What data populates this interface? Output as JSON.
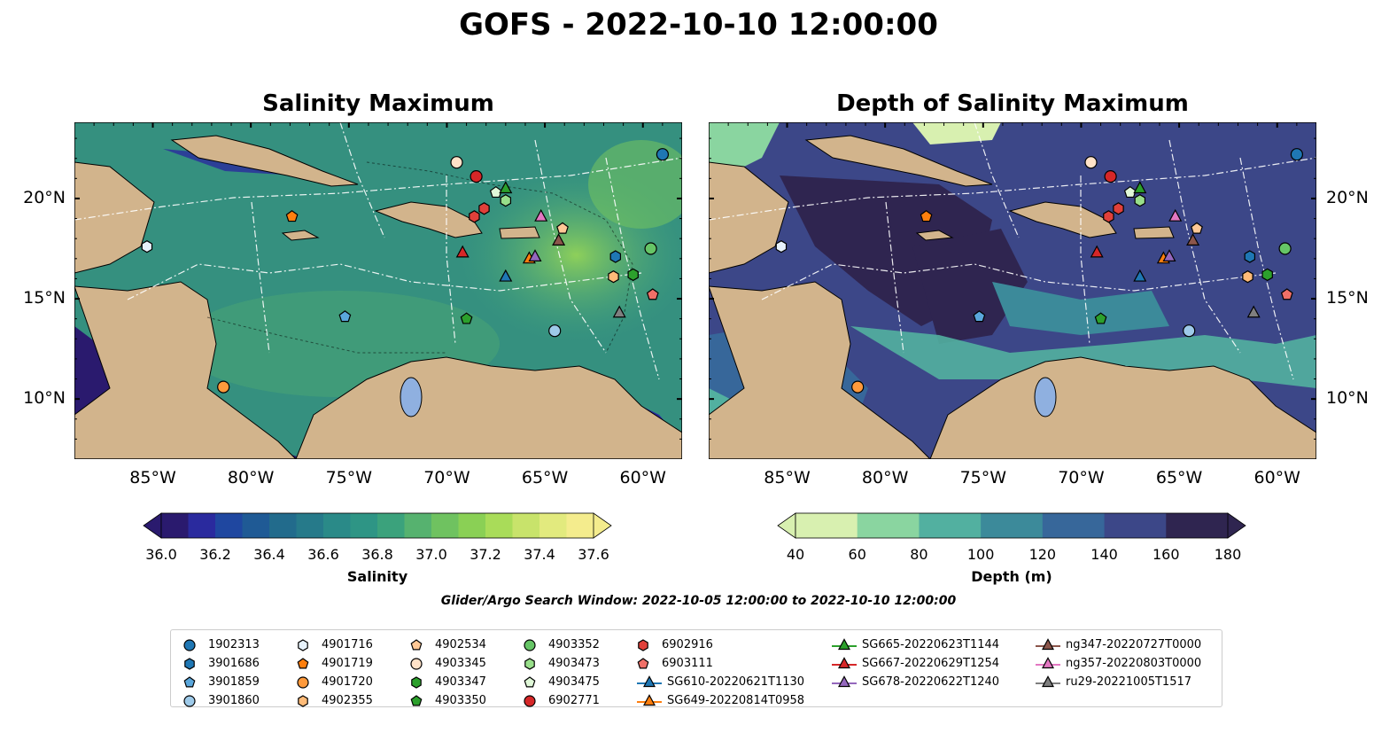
{
  "suptitle": "GOFS - 2022-10-10 12:00:00",
  "panels": [
    {
      "title": "Salinity Maximum"
    },
    {
      "title": "Depth of Salinity Maximum"
    }
  ],
  "axis": {
    "lon_labels": [
      "85°W",
      "80°W",
      "75°W",
      "70°W",
      "65°W",
      "60°W"
    ],
    "lat_labels": [
      "20°N",
      "15°N",
      "10°N"
    ]
  },
  "colorbars": [
    {
      "label": "Salinity",
      "ticks": [
        "36.0",
        "36.2",
        "36.4",
        "36.6",
        "36.8",
        "37.0",
        "37.2",
        "37.4",
        "37.6"
      ],
      "colors": [
        "#2a1a6e",
        "#2a2a9e",
        "#1f47a0",
        "#1f5a95",
        "#226b8c",
        "#267a8a",
        "#2a8a88",
        "#2e9585",
        "#3ba27c",
        "#56b26f",
        "#6fc260",
        "#8ad055",
        "#a9dc59",
        "#c8e36b",
        "#e2ea7e",
        "#f4ec8d"
      ]
    },
    {
      "label": "Depth (m)",
      "ticks": [
        "40",
        "60",
        "80",
        "100",
        "120",
        "140",
        "160",
        "180"
      ],
      "colors": [
        "#d8f0b0",
        "#8ad5a0",
        "#52b0a0",
        "#3c8a9a",
        "#37679a",
        "#3c4788",
        "#2f2550"
      ]
    }
  ],
  "search_window": "Glider/Argo Search Window: 2022-10-05 12:00:00 to 2022-10-10 12:00:00",
  "legend": [
    {
      "label": "1902313",
      "marker": "circle",
      "color": "#1f77b4"
    },
    {
      "label": "3901686",
      "marker": "hexagon",
      "color": "#1f77b4"
    },
    {
      "label": "3901859",
      "marker": "pentagon",
      "color": "#5aa7dc"
    },
    {
      "label": "3901860",
      "marker": "circle",
      "color": "#9ecae9"
    },
    {
      "label": "4901716",
      "marker": "hexagon",
      "color": "#e7f2fb"
    },
    {
      "label": "4901719",
      "marker": "pentagon",
      "color": "#ff7f0e"
    },
    {
      "label": "4901720",
      "marker": "circle",
      "color": "#ff9a3c"
    },
    {
      "label": "4902355",
      "marker": "hexagon",
      "color": "#ffbb78"
    },
    {
      "label": "4902534",
      "marker": "pentagon",
      "color": "#ffc896"
    },
    {
      "label": "4903345",
      "marker": "circle",
      "color": "#ffe2c8"
    },
    {
      "label": "4903347",
      "marker": "hexagon",
      "color": "#2ca02c"
    },
    {
      "label": "4903350",
      "marker": "pentagon",
      "color": "#2ca02c"
    },
    {
      "label": "4903352",
      "marker": "circle",
      "color": "#66c566"
    },
    {
      "label": "4903473",
      "marker": "hexagon",
      "color": "#98df8a"
    },
    {
      "label": "4903475",
      "marker": "pentagon",
      "color": "#e0f8d8"
    },
    {
      "label": "6902771",
      "marker": "circle",
      "color": "#d62728"
    },
    {
      "label": "6902916",
      "marker": "hexagon",
      "color": "#e0403a"
    },
    {
      "label": "6903111",
      "marker": "pentagon",
      "color": "#f07068"
    },
    {
      "label": "SG610-20220621T1130",
      "marker": "triangle-line",
      "color": "#1f77b4"
    },
    {
      "label": "SG649-20220814T0958",
      "marker": "triangle-line",
      "color": "#ff7f0e"
    },
    {
      "label": "SG665-20220623T1144",
      "marker": "triangle-line",
      "color": "#2ca02c"
    },
    {
      "label": "SG667-20220629T1254",
      "marker": "triangle-line",
      "color": "#d62728"
    },
    {
      "label": "SG678-20220622T1240",
      "marker": "triangle-line",
      "color": "#9467bd"
    },
    {
      "label": "ng347-20220727T0000",
      "marker": "triangle-line",
      "color": "#8c564b"
    },
    {
      "label": "ng357-20220803T0000",
      "marker": "triangle-line",
      "color": "#e377c2"
    },
    {
      "label": "ru29-20221005T1517",
      "marker": "triangle-line",
      "color": "#7f7f7f"
    }
  ],
  "platforms": [
    {
      "id": "1902313",
      "lon": -59.0,
      "lat": 22.2
    },
    {
      "id": "3901686",
      "lon": -61.4,
      "lat": 17.1
    },
    {
      "id": "3901859",
      "lon": -75.2,
      "lat": 14.1
    },
    {
      "id": "3901860",
      "lon": -64.5,
      "lat": 13.4
    },
    {
      "id": "4901716",
      "lon": -85.3,
      "lat": 17.6
    },
    {
      "id": "4901719",
      "lon": -77.9,
      "lat": 19.1
    },
    {
      "id": "4901720",
      "lon": -81.4,
      "lat": 10.6
    },
    {
      "id": "4902355",
      "lon": -61.5,
      "lat": 16.1
    },
    {
      "id": "4902534",
      "lon": -64.1,
      "lat": 18.5
    },
    {
      "id": "4903345",
      "lon": -69.5,
      "lat": 21.8
    },
    {
      "id": "4903347",
      "lon": -60.5,
      "lat": 16.2
    },
    {
      "id": "4903350",
      "lon": -69.0,
      "lat": 14.0
    },
    {
      "id": "4903352",
      "lon": -59.6,
      "lat": 17.5
    },
    {
      "id": "4903473",
      "lon": -67.0,
      "lat": 19.9
    },
    {
      "id": "4903475",
      "lon": -67.5,
      "lat": 20.3
    },
    {
      "id": "6902771",
      "lon": -68.5,
      "lat": 21.1
    },
    {
      "id": "6902916",
      "lon": -68.6,
      "lat": 19.1
    },
    {
      "id": "6903111",
      "lon": -59.5,
      "lat": 15.2
    },
    {
      "id": "SG610-20220621T1130",
      "lon": -67.0,
      "lat": 16.1
    },
    {
      "id": "SG649-20220814T0958",
      "lon": -65.8,
      "lat": 17.0
    },
    {
      "id": "SG665-20220623T1144",
      "lon": -67.0,
      "lat": 20.5
    },
    {
      "id": "SG667-20220629T1254",
      "lon": -69.2,
      "lat": 17.3
    },
    {
      "id": "SG678-20220622T1240",
      "lon": -65.5,
      "lat": 17.1
    },
    {
      "id": "ng347-20220727T0000",
      "lon": -64.3,
      "lat": 17.9
    },
    {
      "id": "ng357-20220803T0000",
      "lon": -65.2,
      "lat": 19.1
    },
    {
      "id": "ru29-20221005T1517",
      "lon": -61.2,
      "lat": 14.3
    },
    {
      "id": "6902916b",
      "lon": -68.1,
      "lat": 19.5
    }
  ]
}
